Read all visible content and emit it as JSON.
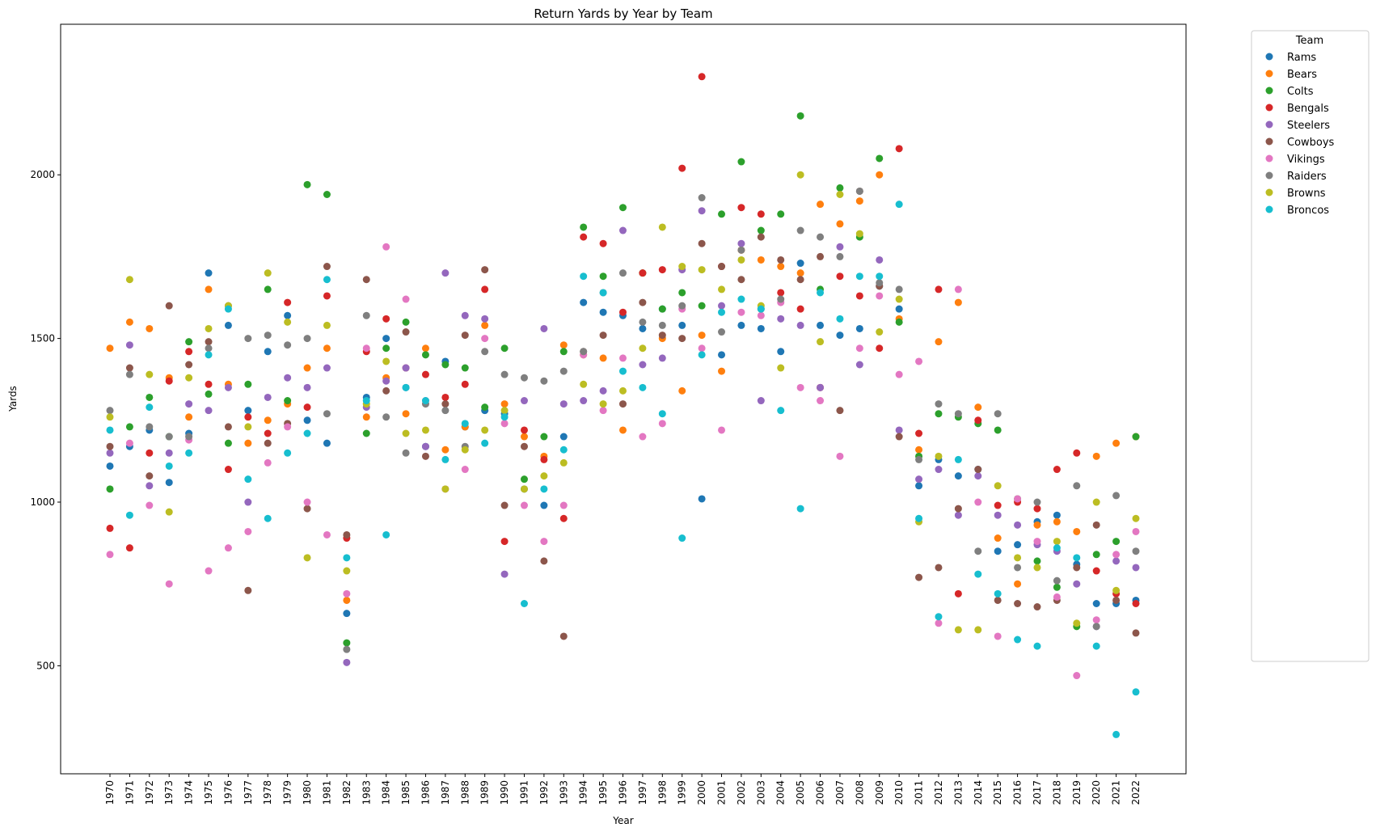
{
  "chart_data": {
    "type": "scatter",
    "title": "Return Yards by Year by Team",
    "xlabel": "Year",
    "ylabel": "Yards",
    "x": [
      1970,
      1971,
      1972,
      1973,
      1974,
      1975,
      1976,
      1977,
      1978,
      1979,
      1980,
      1981,
      1982,
      1983,
      1984,
      1985,
      1986,
      1987,
      1988,
      1989,
      1990,
      1991,
      1992,
      1993,
      1994,
      1995,
      1996,
      1997,
      1998,
      1999,
      2000,
      2001,
      2002,
      2003,
      2004,
      2005,
      2006,
      2007,
      2008,
      2009,
      2010,
      2011,
      2012,
      2013,
      2014,
      2015,
      2016,
      2017,
      2018,
      2019,
      2020,
      2021,
      2022
    ],
    "ylim": [
      170,
      2460
    ],
    "yticks": [
      500,
      1000,
      1500,
      2000
    ],
    "grid": false,
    "legend": {
      "title": "Team",
      "placement": "outside-right"
    },
    "palette": [
      "#1f77b4",
      "#ff7f0e",
      "#2ca02c",
      "#d62728",
      "#9467bd",
      "#8c564b",
      "#e377c2",
      "#7f7f7f",
      "#bcbd22",
      "#17becf"
    ],
    "series": [
      {
        "name": "Rams",
        "values": [
          1110,
          1170,
          1220,
          1060,
          1210,
          1700,
          1540,
          1280,
          1460,
          1570,
          1250,
          1180,
          660,
          1320,
          1500,
          1350,
          1170,
          1430,
          1230,
          1280,
          1270,
          1040,
          990,
          1200,
          1610,
          1580,
          1570,
          1530,
          1590,
          1540,
          1010,
          1450,
          1540,
          1530,
          1460,
          1730,
          1540,
          1510,
          1530,
          1660,
          1590,
          1050,
          1130,
          1080,
          1100,
          850,
          870,
          940,
          960,
          810,
          690,
          690,
          700
        ]
      },
      {
        "name": "Bears",
        "values": [
          1470,
          1550,
          1530,
          1380,
          1260,
          1650,
          1360,
          1180,
          1250,
          1300,
          1410,
          1470,
          700,
          1260,
          1380,
          1270,
          1470,
          1160,
          1230,
          1540,
          1300,
          1200,
          1140,
          1480,
          1450,
          1440,
          1220,
          1700,
          1500,
          1340,
          1510,
          1400,
          1770,
          1740,
          1720,
          1700,
          1910,
          1850,
          1920,
          2000,
          1560,
          1160,
          1490,
          1610,
          1290,
          890,
          750,
          930,
          940,
          910,
          1140,
          1180,
          1200
        ]
      },
      {
        "name": "Colts",
        "values": [
          1040,
          1230,
          1320,
          1200,
          1490,
          1330,
          1180,
          1360,
          1650,
          1310,
          1970,
          1940,
          570,
          1210,
          1470,
          1550,
          1450,
          1420,
          1410,
          1290,
          1470,
          1070,
          1200,
          1460,
          1840,
          1690,
          1900,
          1700,
          1590,
          1640,
          1600,
          1880,
          2040,
          1830,
          1880,
          2180,
          1650,
          1960,
          1810,
          2050,
          1550,
          1140,
          1270,
          1260,
          1240,
          1220,
          1010,
          820,
          740,
          620,
          840,
          880,
          1200
        ]
      },
      {
        "name": "Bengals",
        "values": [
          920,
          860,
          1150,
          1370,
          1460,
          1360,
          1100,
          1260,
          1210,
          1610,
          1290,
          1630,
          890,
          1460,
          1560,
          1410,
          1390,
          1320,
          1360,
          1650,
          880,
          1220,
          1130,
          950,
          1810,
          1790,
          1580,
          1700,
          1710,
          2020,
          2300,
          1720,
          1900,
          1880,
          1640,
          1590,
          1350,
          1690,
          1630,
          1470,
          2080,
          1210,
          1650,
          720,
          1250,
          990,
          1000,
          980,
          1100,
          1150,
          790,
          720,
          690
        ]
      },
      {
        "name": "Steelers",
        "values": [
          1150,
          1480,
          1050,
          1150,
          1300,
          1280,
          1350,
          1000,
          1320,
          1380,
          1350,
          1410,
          510,
          1290,
          1370,
          1410,
          1170,
          1700,
          1570,
          1560,
          780,
          1310,
          1530,
          1300,
          1310,
          1340,
          1830,
          1420,
          1440,
          1710,
          1890,
          1600,
          1790,
          1310,
          1560,
          1540,
          1350,
          1780,
          1420,
          1740,
          1220,
          1070,
          1100,
          960,
          1080,
          960,
          930,
          870,
          850,
          750,
          620,
          820,
          800
        ]
      },
      {
        "name": "Cowboys",
        "values": [
          1170,
          1410,
          1080,
          1600,
          1420,
          1490,
          1230,
          730,
          1180,
          1240,
          980,
          1720,
          900,
          1680,
          1340,
          1520,
          1140,
          1300,
          1510,
          1710,
          990,
          1170,
          820,
          590,
          1460,
          1510,
          1300,
          1610,
          1510,
          1500,
          1790,
          1720,
          1680,
          1810,
          1740,
          1680,
          1750,
          1280,
          1950,
          1660,
          1200,
          770,
          800,
          980,
          1100,
          700,
          690,
          680,
          700,
          800,
          930,
          700,
          600
        ]
      },
      {
        "name": "Vikings",
        "values": [
          840,
          1180,
          990,
          750,
          1190,
          790,
          860,
          910,
          1120,
          1230,
          1000,
          900,
          720,
          1470,
          1780,
          1620,
          1310,
          1040,
          1100,
          1500,
          1240,
          990,
          880,
          990,
          1450,
          1280,
          1440,
          1200,
          1240,
          1590,
          1470,
          1220,
          1580,
          1570,
          1610,
          1350,
          1310,
          1140,
          1470,
          1630,
          1390,
          1430,
          630,
          1650,
          1000,
          590,
          1010,
          880,
          710,
          470,
          640,
          840,
          910
        ]
      },
      {
        "name": "Raiders",
        "values": [
          1280,
          1390,
          1230,
          1200,
          1200,
          1470,
          1600,
          1500,
          1510,
          1480,
          1500,
          1270,
          550,
          1570,
          1260,
          1150,
          1300,
          1280,
          1170,
          1460,
          1390,
          1380,
          1370,
          1400,
          1460,
          1640,
          1700,
          1550,
          1540,
          1600,
          1930,
          1520,
          1770,
          1590,
          1620,
          1830,
          1810,
          1750,
          1950,
          1670,
          1650,
          1130,
          1300,
          1270,
          850,
          1270,
          800,
          1000,
          760,
          1050,
          620,
          1020,
          850
        ]
      },
      {
        "name": "Browns",
        "values": [
          1260,
          1680,
          1390,
          970,
          1380,
          1530,
          1600,
          1230,
          1700,
          1550,
          830,
          1540,
          790,
          1300,
          1430,
          1210,
          1220,
          1040,
          1160,
          1220,
          1280,
          1040,
          1080,
          1120,
          1360,
          1300,
          1340,
          1470,
          1840,
          1720,
          1710,
          1650,
          1740,
          1600,
          1410,
          2000,
          1490,
          1940,
          1820,
          1520,
          1620,
          940,
          1140,
          610,
          610,
          1050,
          830,
          800,
          880,
          630,
          1000,
          730,
          950
        ]
      },
      {
        "name": "Broncos",
        "values": [
          1220,
          960,
          1290,
          1110,
          1150,
          1450,
          1590,
          1070,
          950,
          1150,
          1210,
          1680,
          830,
          1310,
          900,
          1350,
          1310,
          1130,
          1240,
          1180,
          1260,
          690,
          1040,
          1160,
          1690,
          1640,
          1400,
          1350,
          1270,
          890,
          1450,
          1580,
          1620,
          1590,
          1280,
          980,
          1640,
          1560,
          1690,
          1690,
          1910,
          950,
          650,
          1130,
          780,
          720,
          580,
          560,
          860,
          830,
          560,
          290,
          420
        ]
      }
    ]
  }
}
